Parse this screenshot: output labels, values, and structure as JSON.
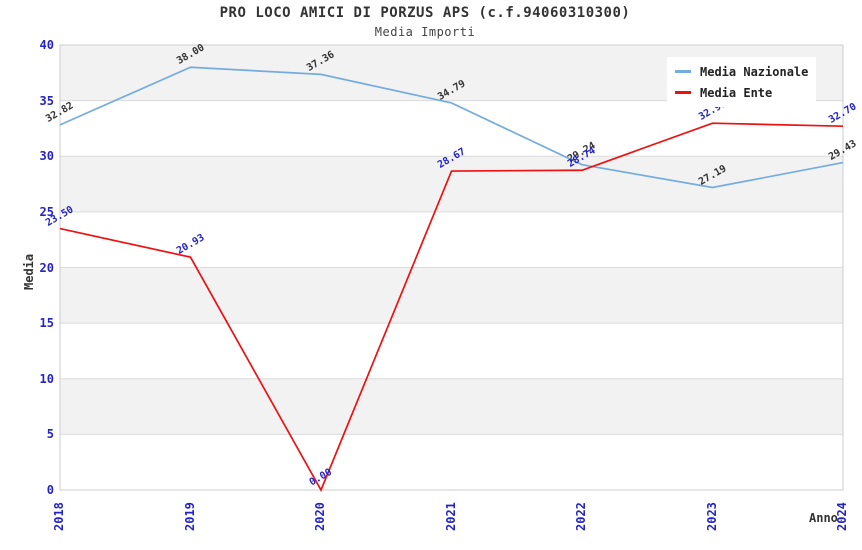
{
  "chart_data": {
    "type": "line",
    "title": "PRO LOCO AMICI DI PORZUS APS (c.f.94060310300)",
    "subtitle": "Media Importi",
    "xlabel": "Anno",
    "ylabel": "Media",
    "categories": [
      "2018",
      "2019",
      "2020",
      "2021",
      "2022",
      "2023",
      "2024"
    ],
    "series": [
      {
        "name": "Media Nazionale",
        "color": "#74ACE0",
        "label_color": "#333333",
        "values": [
          32.82,
          38.0,
          37.36,
          34.79,
          29.24,
          27.19,
          29.43
        ]
      },
      {
        "name": "Media Ente",
        "color": "#EE1111",
        "label_color": "#2323CB",
        "values": [
          23.5,
          20.93,
          0.0,
          28.67,
          28.74,
          32.97,
          32.7
        ]
      }
    ],
    "ylim": [
      0,
      40
    ],
    "yticks": [
      0,
      5,
      10,
      15,
      20,
      25,
      30,
      35,
      40
    ],
    "value_label_decimals": 2,
    "tick_color": "#2323CB",
    "band_color": "#F2F2F2",
    "gridline_color": "#DBDBDB",
    "border_color": "#CCCCCC",
    "grid": "horizontal",
    "legend_position": "top-right"
  }
}
